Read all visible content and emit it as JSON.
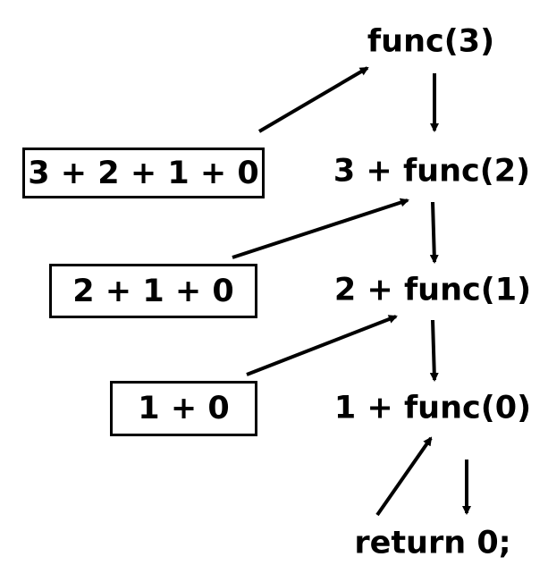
{
  "colors": {
    "ink": "#000000",
    "background": "#ffffff"
  },
  "calls": {
    "call_3": "func(3)",
    "expand_2": "3 + func(2)",
    "expand_1": "2 + func(1)",
    "expand_0": "1 + func(0)",
    "base_case": "return 0;"
  },
  "results": {
    "result_3": "3 + 2 + 1 + 0",
    "result_2": "2 + 1 + 0",
    "result_1": "1 + 0"
  }
}
